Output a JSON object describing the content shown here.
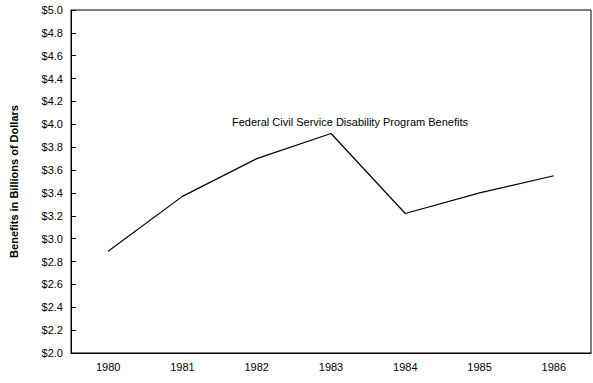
{
  "chart_data": {
    "type": "line",
    "y_label": "Benefits in Billions of Dollars",
    "annotation": "Federal Civil Service Disability Program Benefits",
    "categories": [
      "1980",
      "1981",
      "1982",
      "1983",
      "1984",
      "1985",
      "1986"
    ],
    "values": [
      2.89,
      3.37,
      3.7,
      3.92,
      3.22,
      3.4,
      3.55
    ],
    "color": "#000000",
    "ylim": [
      2.0,
      5.0
    ],
    "yticks": [
      {
        "value": 2.0,
        "label": "$2.0"
      },
      {
        "value": 2.2,
        "label": "$2.2"
      },
      {
        "value": 2.4,
        "label": "$2.4"
      },
      {
        "value": 2.6,
        "label": "$2.6"
      },
      {
        "value": 2.8,
        "label": "$2.8"
      },
      {
        "value": 3.0,
        "label": "$3.0"
      },
      {
        "value": 3.2,
        "label": "$3.2"
      },
      {
        "value": 3.4,
        "label": "$3.4"
      },
      {
        "value": 3.6,
        "label": "$3.6"
      },
      {
        "value": 3.8,
        "label": "$3.8"
      },
      {
        "value": 4.0,
        "label": "$4.0"
      },
      {
        "value": 4.2,
        "label": "$4.2"
      },
      {
        "value": 4.4,
        "label": "$4.4"
      },
      {
        "value": 4.6,
        "label": "$4.6"
      },
      {
        "value": 4.8,
        "label": "$4.8"
      },
      {
        "value": 5.0,
        "label": "$5.0"
      }
    ],
    "grid": false
  }
}
